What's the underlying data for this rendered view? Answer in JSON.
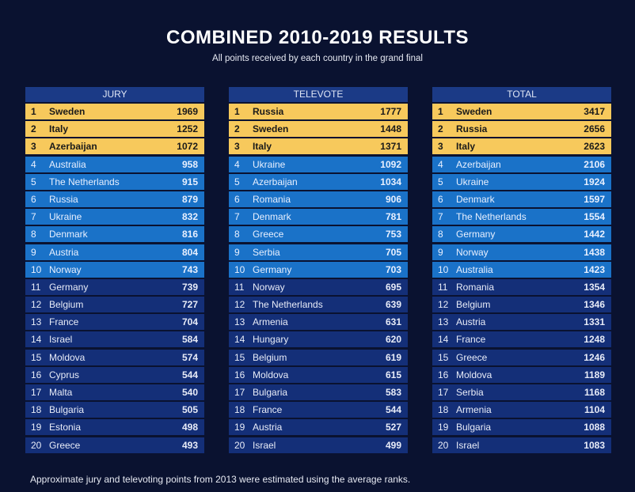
{
  "title": "COMBINED 2010-2019 RESULTS",
  "subtitle": "All points received by each country in the grand final",
  "footnote": "Approximate jury and televoting points from 2013 were estimated using the average ranks.",
  "colors": {
    "gold": "#f7c95c",
    "blue": "#1a72c8",
    "dark": "#142f78",
    "background": "#0a1230"
  },
  "tables": [
    {
      "header": "JURY",
      "rows": [
        [
          "1",
          "Sweden",
          "1969"
        ],
        [
          "2",
          "Italy",
          "1252"
        ],
        [
          "3",
          "Azerbaijan",
          "1072"
        ],
        [
          "4",
          "Australia",
          "958"
        ],
        [
          "5",
          "The Netherlands",
          "915"
        ],
        [
          "6",
          "Russia",
          "879"
        ],
        [
          "7",
          "Ukraine",
          "832"
        ],
        [
          "8",
          "Denmark",
          "816"
        ],
        [
          "9",
          "Austria",
          "804"
        ],
        [
          "10",
          "Norway",
          "743"
        ],
        [
          "11",
          "Germany",
          "739"
        ],
        [
          "12",
          "Belgium",
          "727"
        ],
        [
          "13",
          "France",
          "704"
        ],
        [
          "14",
          "Israel",
          "584"
        ],
        [
          "15",
          "Moldova",
          "574"
        ],
        [
          "16",
          "Cyprus",
          "544"
        ],
        [
          "17",
          "Malta",
          "540"
        ],
        [
          "18",
          "Bulgaria",
          "505"
        ],
        [
          "19",
          "Estonia",
          "498"
        ],
        [
          "20",
          "Greece",
          "493"
        ]
      ]
    },
    {
      "header": "TELEVOTE",
      "rows": [
        [
          "1",
          "Russia",
          "1777"
        ],
        [
          "2",
          "Sweden",
          "1448"
        ],
        [
          "3",
          "Italy",
          "1371"
        ],
        [
          "4",
          "Ukraine",
          "1092"
        ],
        [
          "5",
          "Azerbaijan",
          "1034"
        ],
        [
          "6",
          "Romania",
          "906"
        ],
        [
          "7",
          "Denmark",
          "781"
        ],
        [
          "8",
          "Greece",
          "753"
        ],
        [
          "9",
          "Serbia",
          "705"
        ],
        [
          "10",
          "Germany",
          "703"
        ],
        [
          "11",
          "Norway",
          "695"
        ],
        [
          "12",
          "The Netherlands",
          "639"
        ],
        [
          "13",
          "Armenia",
          "631"
        ],
        [
          "14",
          "Hungary",
          "620"
        ],
        [
          "15",
          "Belgium",
          "619"
        ],
        [
          "16",
          "Moldova",
          "615"
        ],
        [
          "17",
          "Bulgaria",
          "583"
        ],
        [
          "18",
          "France",
          "544"
        ],
        [
          "19",
          "Austria",
          "527"
        ],
        [
          "20",
          "Israel",
          "499"
        ]
      ]
    },
    {
      "header": "TOTAL",
      "rows": [
        [
          "1",
          "Sweden",
          "3417"
        ],
        [
          "2",
          "Russia",
          "2656"
        ],
        [
          "3",
          "Italy",
          "2623"
        ],
        [
          "4",
          "Azerbaijan",
          "2106"
        ],
        [
          "5",
          "Ukraine",
          "1924"
        ],
        [
          "6",
          "Denmark",
          "1597"
        ],
        [
          "7",
          "The Netherlands",
          "1554"
        ],
        [
          "8",
          "Germany",
          "1442"
        ],
        [
          "9",
          "Norway",
          "1438"
        ],
        [
          "10",
          "Australia",
          "1423"
        ],
        [
          "11",
          "Romania",
          "1354"
        ],
        [
          "12",
          "Belgium",
          "1346"
        ],
        [
          "13",
          "Austria",
          "1331"
        ],
        [
          "14",
          "France",
          "1248"
        ],
        [
          "15",
          "Greece",
          "1246"
        ],
        [
          "16",
          "Moldova",
          "1189"
        ],
        [
          "17",
          "Serbia",
          "1168"
        ],
        [
          "18",
          "Armenia",
          "1104"
        ],
        [
          "19",
          "Bulgaria",
          "1088"
        ],
        [
          "20",
          "Israel",
          "1083"
        ]
      ]
    }
  ]
}
